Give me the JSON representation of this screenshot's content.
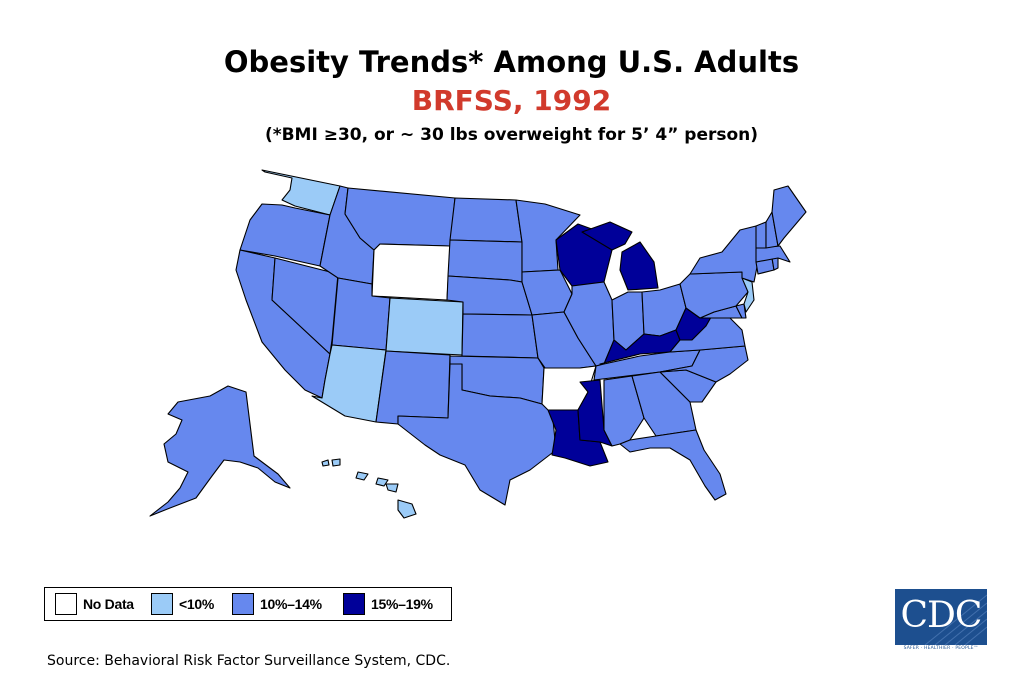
{
  "title": "Obesity Trends* Among U.S. Adults",
  "subtitle": "BRFSS, 1992",
  "note": "(*BMI ≥30, or ~ 30 lbs overweight for 5’ 4” person)",
  "colors": {
    "title": "#000000",
    "subtitle": "#d13a2c",
    "no_data": "#ffffff",
    "lt10": "#9bcbf7",
    "c10_14": "#6688ee",
    "c15_19": "#000099",
    "border": "#000000",
    "cdc_blue": "#1d4f8f"
  },
  "legend": {
    "items": [
      {
        "key": "no_data",
        "label": "No Data"
      },
      {
        "key": "lt10",
        "label": "<10%"
      },
      {
        "key": "c10_14",
        "label": "10%–14%"
      },
      {
        "key": "c15_19",
        "label": "15%–19%"
      }
    ]
  },
  "source": "Source: Behavioral Risk Factor Surveillance System, CDC.",
  "logo": {
    "text": "CDC",
    "tagline": "SAFER · HEALTHIER · PEOPLE™"
  },
  "states": {
    "WA": "lt10",
    "OR": "c10_14",
    "CA": "c10_14",
    "NV": "c10_14",
    "ID": "c10_14",
    "MT": "c10_14",
    "WY": "no_data",
    "UT": "c10_14",
    "AZ": "lt10",
    "CO": "lt10",
    "NM": "c10_14",
    "ND": "c10_14",
    "SD": "c10_14",
    "NE": "c10_14",
    "KS": "c10_14",
    "OK": "c10_14",
    "TX": "c10_14",
    "MN": "c10_14",
    "IA": "c10_14",
    "MO": "c10_14",
    "AR": "no_data",
    "LA": "c15_19",
    "WI": "c15_19",
    "IL": "c10_14",
    "MI": "c15_19",
    "IN": "c10_14",
    "OH": "c10_14",
    "KY": "c15_19",
    "TN": "c10_14",
    "MS": "c15_19",
    "AL": "c10_14",
    "GA": "c10_14",
    "FL": "c10_14",
    "SC": "c10_14",
    "NC": "c10_14",
    "VA": "c10_14",
    "WV": "c15_19",
    "MD": "c10_14",
    "DE": "c10_14",
    "PA": "c10_14",
    "NY": "c10_14",
    "NJ": "lt10",
    "CT": "c10_14",
    "RI": "c10_14",
    "MA": "c10_14",
    "VT": "c10_14",
    "NH": "c10_14",
    "ME": "c10_14",
    "AK": "c10_14",
    "HI": "lt10"
  }
}
